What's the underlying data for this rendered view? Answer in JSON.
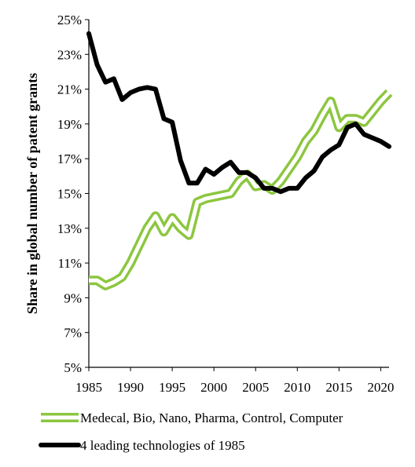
{
  "chart_data": {
    "type": "line",
    "title": "",
    "xlabel": "",
    "ylabel": "Share in global number of patent grants",
    "xlim": [
      1985,
      2021
    ],
    "ylim": [
      5,
      25
    ],
    "x_ticks": [
      1985,
      1990,
      1995,
      2000,
      2005,
      2010,
      2015,
      2020
    ],
    "y_ticks": [
      5,
      7,
      9,
      11,
      13,
      15,
      17,
      19,
      21,
      23,
      25
    ],
    "y_tick_suffix": "%",
    "grid": false,
    "legend": "bottom",
    "series": [
      {
        "name": "Medecal, Bio, Nano, Pharma, Control, Computer",
        "color": "#8cc63f",
        "style": "double-line",
        "x": [
          1985,
          1986,
          1987,
          1988,
          1989,
          1990,
          1991,
          1992,
          1993,
          1994,
          1995,
          1996,
          1997,
          1998,
          1999,
          2000,
          2001,
          2002,
          2003,
          2004,
          2005,
          2006,
          2007,
          2008,
          2009,
          2010,
          2011,
          2012,
          2013,
          2014,
          2015,
          2016,
          2017,
          2018,
          2019,
          2020,
          2021
        ],
        "values": [
          10.0,
          10.0,
          9.7,
          9.9,
          10.2,
          11.0,
          12.0,
          13.0,
          13.7,
          12.8,
          13.6,
          13.0,
          12.6,
          14.5,
          14.7,
          14.8,
          14.9,
          15.0,
          15.7,
          16.1,
          15.4,
          15.5,
          15.2,
          15.7,
          16.4,
          17.1,
          18.0,
          18.6,
          19.5,
          20.3,
          18.8,
          19.3,
          19.3,
          19.1,
          19.7,
          20.3,
          20.8
        ]
      },
      {
        "name": "4 leading technologies of 1985",
        "color": "#000000",
        "style": "solid",
        "x": [
          1985,
          1986,
          1987,
          1988,
          1989,
          1990,
          1991,
          1992,
          1993,
          1994,
          1995,
          1996,
          1997,
          1998,
          1999,
          2000,
          2001,
          2002,
          2003,
          2004,
          2005,
          2006,
          2007,
          2008,
          2009,
          2010,
          2011,
          2012,
          2013,
          2014,
          2015,
          2016,
          2017,
          2018,
          2019,
          2020,
          2021
        ],
        "values": [
          24.2,
          22.4,
          21.4,
          21.6,
          20.4,
          20.8,
          21.0,
          21.1,
          21.0,
          19.3,
          19.1,
          16.9,
          15.6,
          15.6,
          16.4,
          16.1,
          16.5,
          16.8,
          16.2,
          16.2,
          15.9,
          15.3,
          15.3,
          15.1,
          15.3,
          15.3,
          15.9,
          16.3,
          17.1,
          17.5,
          17.8,
          18.8,
          19.0,
          18.4,
          18.2,
          18.0,
          17.7
        ]
      }
    ]
  }
}
